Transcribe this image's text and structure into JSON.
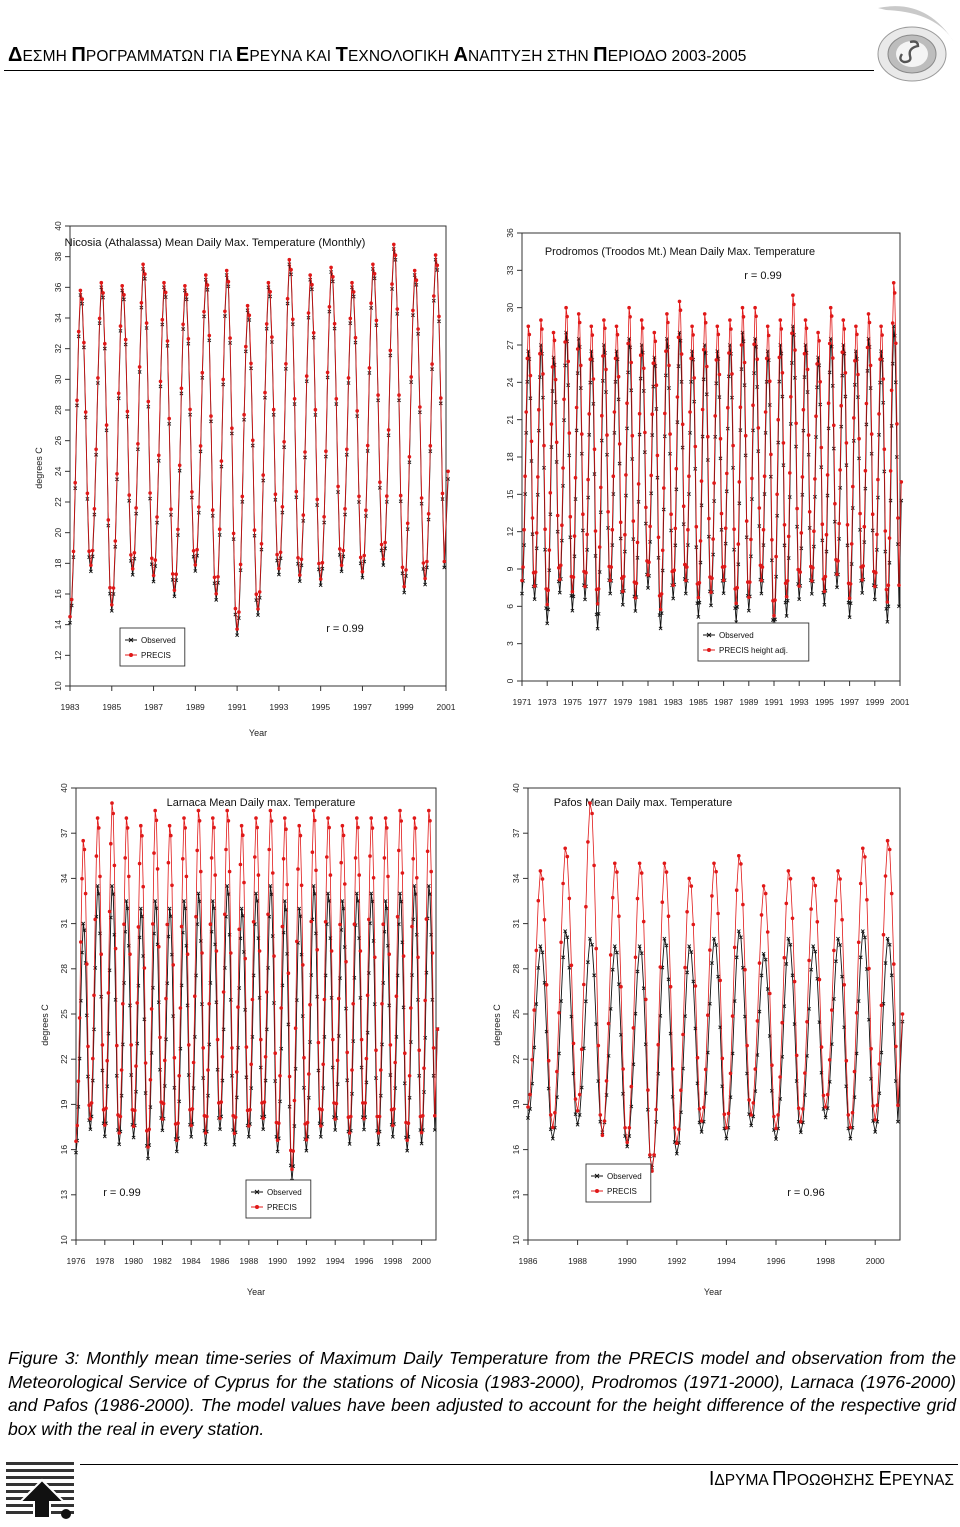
{
  "header": {
    "words": [
      {
        "cap": "Δ",
        "rest": "ΕΣΜΗ "
      },
      {
        "cap": "Π",
        "rest": "ΡΟΓΡΑΜΜΑΤΩΝ ΓΙΑ "
      },
      {
        "cap": "Ε",
        "rest": "ΡΕΥΝΑ ΚΑΙ "
      },
      {
        "cap": "Τ",
        "rest": "ΕΧΝΟΛΟΓΙΚΗ "
      },
      {
        "cap": "Α",
        "rest": "ΝΑΠΤΥΞΗ ΣΤΗΝ "
      },
      {
        "cap": "Π",
        "rest": "ΕΡΙΟΔΟ 2003-2005"
      }
    ]
  },
  "footer": {
    "words": [
      {
        "cap": "Ι",
        "rest": "ΔΡΥΜΑ "
      },
      {
        "cap": "Π",
        "rest": "ΡΟΩΘΗΣΗΣ "
      },
      {
        "cap": "Ε",
        "rest": "ΡΕΥΝΑΣ"
      }
    ]
  },
  "caption": "Figure 3: Monthly mean time-series of Maximum Daily Temperature from the PRECIS model and observation from the Meteorological Service of Cyprus for the stations of Nicosia (1983-2000), Prodromos (1971-2000), Larnaca (1976-2000) and Pafos (1986-2000). The model values have been adjusted to account for the height difference of the respective grid box with the real in every station.",
  "colors": {
    "observed": "#111111",
    "precis": "#e01818"
  },
  "chart_data": [
    {
      "type": "line",
      "title": "Nicosia (Athalassa)   Mean Daily Max. Temperature (Monthly)",
      "xlabel": "Year",
      "ylabel": "degrees C",
      "x_ticks": [
        "1983",
        "1985",
        "1987",
        "1989",
        "1991",
        "1993",
        "1995",
        "1997",
        "1999",
        "2001"
      ],
      "y_ticks": [
        "10",
        "12",
        "14",
        "16",
        "18",
        "20",
        "22",
        "24",
        "26",
        "28",
        "30",
        "32",
        "34",
        "36",
        "38",
        "40"
      ],
      "ylim": [
        10,
        40
      ],
      "xlim": [
        1983,
        2001
      ],
      "annotation": "r = 0.99",
      "legend": [
        "Observed",
        "PRECIS"
      ],
      "legend_position": "bottom-left",
      "series": [
        {
          "name": "Observed",
          "annual_max": [
            35.5,
            36.0,
            35.8,
            37.2,
            36.0,
            35.8,
            36.5,
            36.8,
            34.5,
            36.0,
            37.5,
            36.5,
            37.0,
            36.0,
            37.2,
            38.5,
            36.8,
            37.8
          ],
          "annual_min": [
            13.0,
            16.5,
            13.8,
            16.2,
            15.8,
            14.8,
            16.5,
            14.5,
            12.2,
            13.5,
            16.2,
            15.8,
            15.5,
            16.5,
            16.0,
            16.8,
            15.0,
            15.5
          ],
          "end_value": 23.5
        },
        {
          "name": "PRECIS",
          "annual_max": [
            35.8,
            36.3,
            36.1,
            37.5,
            36.3,
            36.1,
            36.8,
            37.1,
            34.8,
            36.3,
            37.8,
            36.8,
            37.3,
            36.3,
            37.5,
            38.8,
            37.1,
            38.1
          ],
          "annual_min": [
            13.4,
            16.9,
            14.2,
            16.6,
            16.2,
            15.2,
            16.9,
            14.9,
            12.6,
            13.9,
            16.6,
            16.2,
            15.9,
            16.9,
            16.4,
            17.2,
            15.4,
            15.9
          ],
          "end_value": 24.0
        }
      ]
    },
    {
      "type": "line",
      "title": "Prodromos (Troodos Mt.)   Mean Daily Max. Temperature",
      "xlabel": "",
      "ylabel": "",
      "x_ticks": [
        "1971",
        "1973",
        "1975",
        "1977",
        "1979",
        "1981",
        "1983",
        "1985",
        "1987",
        "1989",
        "1991",
        "1993",
        "1995",
        "1997",
        "1999",
        "2001"
      ],
      "y_ticks": [
        "0",
        "3",
        "6",
        "9",
        "12",
        "15",
        "18",
        "21",
        "24",
        "27",
        "30",
        "33",
        "36"
      ],
      "ylim": [
        0,
        36
      ],
      "xlim": [
        1971,
        2001
      ],
      "annotation": "r = 0.99",
      "legend": [
        "Observed",
        "PRECIS height adj."
      ],
      "legend_position": "bottom-right",
      "series": [
        {
          "name": "Observed",
          "annual_max": [
            26.5,
            27.0,
            26.0,
            28.0,
            27.5,
            26.5,
            27.0,
            26.5,
            27.5,
            27.0,
            26.0,
            27.5,
            28.0,
            26.5,
            27.0,
            26.5,
            27.0,
            28.0,
            27.5,
            26.5,
            27.0,
            28.5,
            27.0,
            26.0,
            27.5,
            27.0,
            26.5,
            27.5,
            26.5,
            28.5
          ],
          "annual_min": [
            6.0,
            5.5,
            3.5,
            6.0,
            4.5,
            5.5,
            3.0,
            6.0,
            5.0,
            4.5,
            6.5,
            3.0,
            5.5,
            6.0,
            4.0,
            5.0,
            6.0,
            3.5,
            4.5,
            6.0,
            2.5,
            4.0,
            5.5,
            6.0,
            5.0,
            6.5,
            4.0,
            6.0,
            5.5,
            3.5
          ],
          "end_value": 14.5
        },
        {
          "name": "PRECIS height adj.",
          "annual_max": [
            28.5,
            29.0,
            28.0,
            30.0,
            29.5,
            28.5,
            29.0,
            28.5,
            30.0,
            29.0,
            28.0,
            29.5,
            30.5,
            28.5,
            29.5,
            28.5,
            29.0,
            30.0,
            30.0,
            28.5,
            29.0,
            31.0,
            29.0,
            28.0,
            30.0,
            29.0,
            28.5,
            29.5,
            28.5,
            32.0
          ],
          "annual_min": [
            7.0,
            6.5,
            5.0,
            7.0,
            6.0,
            6.5,
            5.0,
            7.0,
            6.0,
            5.5,
            7.5,
            4.5,
            6.5,
            7.0,
            5.5,
            6.0,
            7.0,
            5.0,
            5.5,
            7.0,
            4.0,
            5.5,
            6.5,
            7.0,
            6.0,
            7.5,
            5.5,
            7.0,
            6.5,
            5.0
          ],
          "end_value": 16.0
        }
      ]
    },
    {
      "type": "line",
      "title": "Larnaca   Mean Daily max. Temperature",
      "xlabel": "Year",
      "ylabel": "degrees C",
      "x_ticks": [
        "1976",
        "1978",
        "1980",
        "1982",
        "1984",
        "1986",
        "1988",
        "1990",
        "1992",
        "1994",
        "1996",
        "1998",
        "2000"
      ],
      "y_ticks": [
        "10",
        "13",
        "16",
        "19",
        "22",
        "25",
        "28",
        "31",
        "34",
        "37",
        "40"
      ],
      "ylim": [
        10,
        40
      ],
      "xlim": [
        1976,
        2001
      ],
      "annotation": "r = 0.99",
      "legend": [
        "Observed",
        "PRECIS"
      ],
      "legend_position": "bottom-center",
      "series": [
        {
          "name": "Observed",
          "annual_max": [
            31.0,
            33.5,
            33.5,
            32.5,
            32.0,
            32.5,
            32.0,
            32.5,
            33.0,
            32.5,
            33.5,
            32.0,
            33.0,
            33.5,
            32.5,
            32.0,
            33.5,
            33.0,
            32.5,
            33.0,
            33.0,
            32.5,
            33.0,
            33.5,
            33.5
          ],
          "annual_min": [
            15.0,
            16.5,
            16.0,
            15.5,
            16.0,
            14.5,
            16.5,
            15.0,
            16.0,
            15.5,
            16.5,
            15.5,
            16.0,
            16.5,
            15.0,
            13.0,
            15.0,
            16.0,
            16.5,
            15.5,
            16.5,
            15.5,
            16.0,
            15.0,
            15.5
          ],
          "end_value": 24.0
        },
        {
          "name": "PRECIS",
          "annual_max": [
            36.5,
            38.0,
            39.0,
            38.0,
            37.5,
            38.5,
            37.5,
            38.0,
            38.5,
            38.0,
            38.5,
            37.5,
            38.0,
            38.5,
            38.0,
            37.5,
            38.5,
            38.0,
            37.5,
            38.0,
            38.0,
            38.0,
            38.5,
            38.0,
            38.5
          ],
          "annual_min": [
            15.5,
            17.0,
            16.5,
            16.0,
            16.5,
            15.0,
            17.0,
            15.5,
            16.5,
            16.0,
            17.0,
            16.0,
            16.5,
            17.0,
            15.5,
            13.5,
            15.5,
            16.5,
            17.0,
            16.0,
            17.0,
            16.0,
            16.5,
            15.5,
            16.0
          ],
          "end_value": 24.0
        }
      ]
    },
    {
      "type": "line",
      "title": "Pafos   Mean Daily max. Temperature",
      "xlabel": "Year",
      "ylabel": "degrees C",
      "x_ticks": [
        "1986",
        "1988",
        "1990",
        "1992",
        "1994",
        "1996",
        "1998",
        "2000"
      ],
      "y_ticks": [
        "10",
        "13",
        "16",
        "19",
        "22",
        "25",
        "28",
        "31",
        "34",
        "37",
        "40"
      ],
      "ylim": [
        10,
        40
      ],
      "xlim": [
        1986,
        2001
      ],
      "annotation": "r = 0.96",
      "legend": [
        "Observed",
        "PRECIS"
      ],
      "legend_position": "bottom-left",
      "series": [
        {
          "name": "Observed",
          "annual_max": [
            29.5,
            30.5,
            30.0,
            29.5,
            29.5,
            30.0,
            29.5,
            30.0,
            30.5,
            29.0,
            30.0,
            29.5,
            30.0,
            30.5,
            30.0
          ],
          "annual_min": [
            17.5,
            16.0,
            17.0,
            16.5,
            15.5,
            14.0,
            15.0,
            16.5,
            16.0,
            17.0,
            16.0,
            16.5,
            17.5,
            16.0,
            16.5
          ],
          "end_value": 24.5
        },
        {
          "name": "PRECIS",
          "annual_max": [
            34.5,
            36.0,
            39.0,
            35.0,
            35.0,
            35.0,
            34.0,
            35.0,
            35.5,
            33.5,
            34.5,
            34.0,
            34.5,
            36.0,
            36.5
          ],
          "annual_min": [
            18.0,
            16.5,
            17.5,
            16.0,
            15.5,
            13.5,
            15.5,
            17.0,
            16.5,
            17.5,
            16.5,
            17.0,
            18.0,
            16.5,
            17.0
          ],
          "end_value": 25.0
        }
      ]
    }
  ]
}
